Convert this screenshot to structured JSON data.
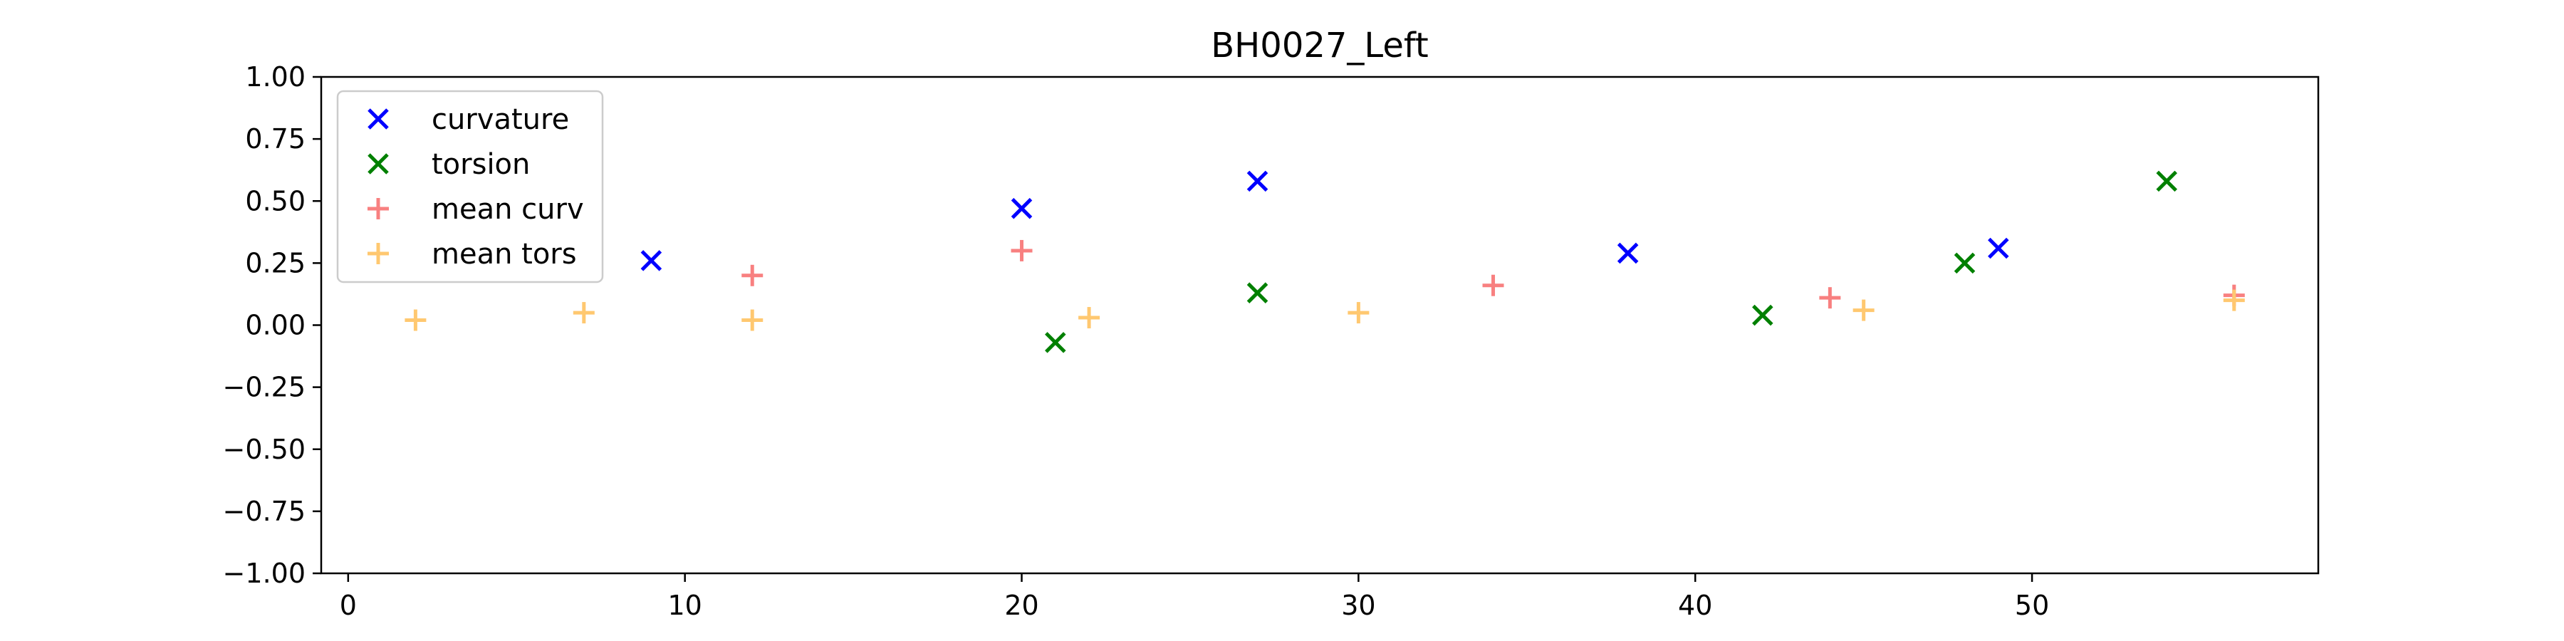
{
  "chart_data": {
    "type": "scatter",
    "title": "BH0027_Left",
    "xlabel": "",
    "ylabel": "",
    "xlim": [
      -0.8,
      58.5
    ],
    "ylim": [
      -1.0,
      1.0
    ],
    "xticks": [
      0,
      10,
      20,
      30,
      40,
      50
    ],
    "yticks": [
      -1.0,
      -0.75,
      -0.5,
      -0.25,
      0.0,
      0.25,
      0.5,
      0.75,
      1.0
    ],
    "xtick_labels": [
      "0",
      "10",
      "20",
      "30",
      "40",
      "50"
    ],
    "ytick_labels": [
      "−1.00",
      "−0.75",
      "−0.50",
      "−0.25",
      "0.00",
      "0.25",
      "0.50",
      "0.75",
      "1.00"
    ],
    "grid": false,
    "legend_position": "upper-left",
    "series": [
      {
        "name": "curvature",
        "marker": "x",
        "color": "#0000ff",
        "x": [
          9,
          20,
          27,
          38,
          49
        ],
        "y": [
          0.26,
          0.47,
          0.58,
          0.29,
          0.31
        ]
      },
      {
        "name": "torsion",
        "marker": "x",
        "color": "#008000",
        "x": [
          21,
          27,
          42,
          48,
          54
        ],
        "y": [
          -0.07,
          0.13,
          0.04,
          0.25,
          0.58
        ]
      },
      {
        "name": "mean curv",
        "marker": "+",
        "color": "#f88080",
        "x": [
          12,
          20,
          34,
          44,
          56
        ],
        "y": [
          0.2,
          0.3,
          0.16,
          0.11,
          0.12
        ]
      },
      {
        "name": "mean tors",
        "marker": "+",
        "color": "#ffc870",
        "x": [
          2,
          7,
          12,
          22,
          30,
          45,
          56
        ],
        "y": [
          0.02,
          0.05,
          0.02,
          0.03,
          0.05,
          0.06,
          0.1
        ]
      }
    ]
  }
}
